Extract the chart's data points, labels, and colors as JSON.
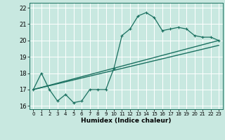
{
  "bg_color": "#c8e8e0",
  "grid_color": "#ffffff",
  "line_color": "#1a7060",
  "xlabel": "Humidex (Indice chaleur)",
  "xlim": [
    -0.5,
    23.5
  ],
  "ylim": [
    15.8,
    22.3
  ],
  "yticks": [
    16,
    17,
    18,
    19,
    20,
    21,
    22
  ],
  "xticks": [
    0,
    1,
    2,
    3,
    4,
    5,
    6,
    7,
    8,
    9,
    10,
    11,
    12,
    13,
    14,
    15,
    16,
    17,
    18,
    19,
    20,
    21,
    22,
    23
  ],
  "line1_x": [
    0,
    1,
    2,
    3,
    4,
    5,
    6,
    7,
    8,
    9,
    10,
    11,
    12,
    13,
    14,
    15,
    16,
    17,
    18,
    19,
    20,
    21,
    22,
    23
  ],
  "line1_y": [
    17.0,
    18.0,
    17.0,
    16.3,
    16.7,
    16.2,
    16.3,
    17.0,
    17.0,
    17.0,
    18.3,
    20.3,
    20.7,
    21.5,
    21.7,
    21.4,
    20.6,
    20.7,
    20.8,
    20.7,
    20.3,
    20.2,
    20.2,
    20.0
  ],
  "line2_x": [
    0,
    23
  ],
  "line2_y": [
    17.0,
    20.0
  ],
  "line3_x": [
    0,
    23
  ],
  "line3_y": [
    17.0,
    19.7
  ],
  "xlabel_fontsize": 6.5,
  "ytick_fontsize": 6,
  "xtick_fontsize": 5.0
}
